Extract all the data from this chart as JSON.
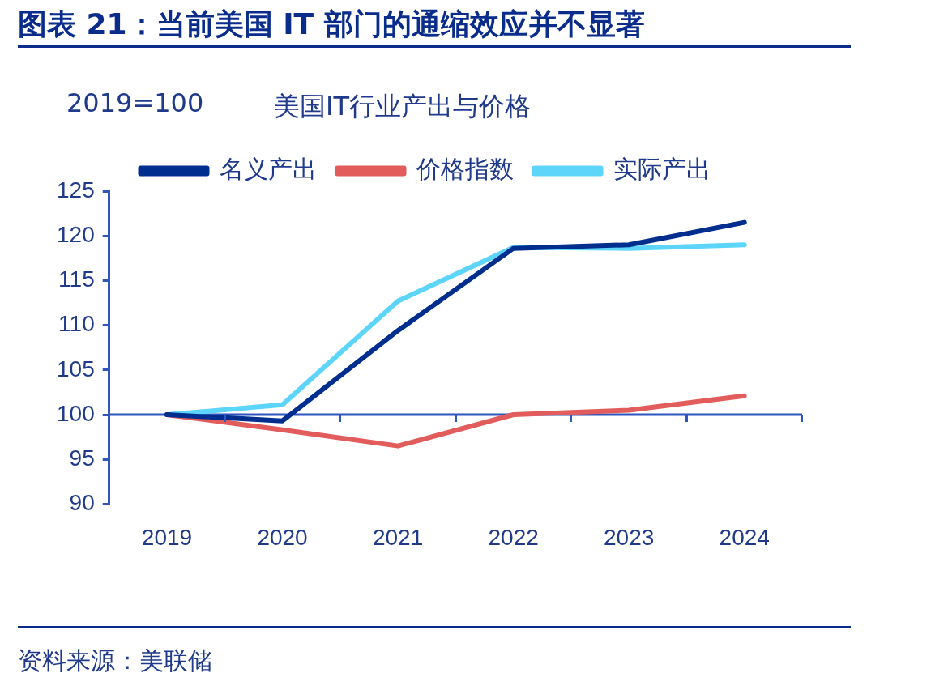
{
  "chart_data": {
    "type": "line",
    "title": "图表 21：当前美国 IT 部门的通缩效应并不显著",
    "subtitle": "美国IT行业产出与价格",
    "ylabel": "2019=100",
    "annotations": [
      "资料来源：美联储"
    ],
    "categories": [
      "2019",
      "2020",
      "2021",
      "2022",
      "2023",
      "2024"
    ],
    "series": [
      {
        "name": "名义产出",
        "color": "#002e8f",
        "values": [
          100,
          99.3,
          109.4,
          118.6,
          119.0,
          121.5
        ]
      },
      {
        "name": "价格指数",
        "color": "#e35c5c",
        "values": [
          100,
          98.3,
          96.5,
          100,
          100.5,
          102.1
        ]
      },
      {
        "name": "实际产出",
        "color": "#5dd5fb",
        "values": [
          100,
          101.1,
          112.7,
          118.7,
          118.6,
          119.0
        ]
      }
    ],
    "ref_lines": [
      {
        "axis": "y",
        "value": 100,
        "color": "#2f55c0"
      }
    ],
    "ylim": [
      90,
      125
    ],
    "yticks": [
      90,
      95,
      100,
      105,
      110,
      115,
      120,
      125
    ],
    "grid": false,
    "legend": "top",
    "marker": "none",
    "line_style": "solid"
  }
}
